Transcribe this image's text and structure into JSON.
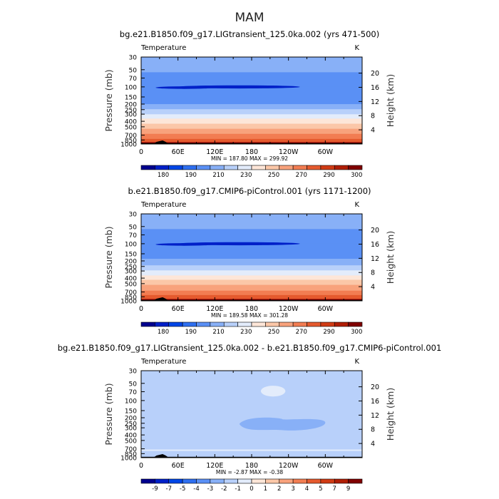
{
  "page_title": "MAM",
  "chart_data": [
    {
      "type": "heatmap",
      "title": "bg.e21.B1850.f09_g17.LIGtransient_125.0ka.002 (yrs 471-500)",
      "subtitle_left": "Temperature",
      "units": "K",
      "ylabel": "Pressure (mb)",
      "ylabel_right": "Height (km)",
      "x_ticks": [
        "0",
        "60E",
        "120E",
        "180",
        "120W",
        "60W"
      ],
      "y_ticks": [
        "30",
        "50",
        "70",
        "100",
        "150",
        "200",
        "250",
        "300",
        "400",
        "500",
        "700",
        "850",
        "1000"
      ],
      "y_right_ticks": [
        "20",
        "16",
        "12",
        "8",
        "4"
      ],
      "stats": "MIN = 187.80   MAX = 299.92",
      "colorbar_labels": [
        "180",
        "190",
        "210",
        "230",
        "250",
        "270",
        "290",
        "300"
      ],
      "colorbar_colors": [
        "#00008e",
        "#0020c8",
        "#0046e6",
        "#2e6ff0",
        "#5a90f5",
        "#88b0f7",
        "#b8d0fa",
        "#e3ecfb",
        "#fde6d8",
        "#fbc7a8",
        "#f8a27c",
        "#f27d52",
        "#e55a2e",
        "#d03b14",
        "#b01e05",
        "#800000"
      ],
      "mean_profile_K": [
        {
          "p": 30,
          "t": 217
        },
        {
          "p": 50,
          "t": 212
        },
        {
          "p": 70,
          "t": 206
        },
        {
          "p": 100,
          "t": 204
        },
        {
          "p": 150,
          "t": 206
        },
        {
          "p": 200,
          "t": 210
        },
        {
          "p": 250,
          "t": 221
        },
        {
          "p": 300,
          "t": 230
        },
        {
          "p": 400,
          "t": 245
        },
        {
          "p": 500,
          "t": 256
        },
        {
          "p": 700,
          "t": 272
        },
        {
          "p": 850,
          "t": 282
        },
        {
          "p": 1000,
          "t": 292
        }
      ]
    },
    {
      "type": "heatmap",
      "title": "b.e21.B1850.f09_g17.CMIP6-piControl.001 (yrs 1171-1200)",
      "subtitle_left": "Temperature",
      "units": "K",
      "ylabel": "Pressure (mb)",
      "ylabel_right": "Height (km)",
      "x_ticks": [
        "0",
        "60E",
        "120E",
        "180",
        "120W",
        "60W"
      ],
      "y_ticks": [
        "30",
        "50",
        "70",
        "100",
        "150",
        "200",
        "250",
        "300",
        "400",
        "500",
        "700",
        "850",
        "1000"
      ],
      "y_right_ticks": [
        "20",
        "16",
        "12",
        "8",
        "4"
      ],
      "stats": "MIN = 189.58   MAX = 301.28",
      "colorbar_labels": [
        "180",
        "190",
        "210",
        "230",
        "250",
        "270",
        "290",
        "300"
      ],
      "colorbar_colors": [
        "#00008e",
        "#0020c8",
        "#0046e6",
        "#2e6ff0",
        "#5a90f5",
        "#88b0f7",
        "#b8d0fa",
        "#e3ecfb",
        "#fde6d8",
        "#fbc7a8",
        "#f8a27c",
        "#f27d52",
        "#e55a2e",
        "#d03b14",
        "#b01e05",
        "#800000"
      ],
      "mean_profile_K": [
        {
          "p": 30,
          "t": 217
        },
        {
          "p": 50,
          "t": 212
        },
        {
          "p": 70,
          "t": 206
        },
        {
          "p": 100,
          "t": 205
        },
        {
          "p": 150,
          "t": 207
        },
        {
          "p": 200,
          "t": 211
        },
        {
          "p": 250,
          "t": 222
        },
        {
          "p": 300,
          "t": 231
        },
        {
          "p": 400,
          "t": 246
        },
        {
          "p": 500,
          "t": 257
        },
        {
          "p": 700,
          "t": 273
        },
        {
          "p": 850,
          "t": 283
        },
        {
          "p": 1000,
          "t": 293
        }
      ]
    },
    {
      "type": "heatmap",
      "title": "bg.e21.B1850.f09_g17.LIGtransient_125.0ka.002 - b.e21.B1850.f09_g17.CMIP6-piControl.001",
      "subtitle_left": "Temperature",
      "units": "K",
      "ylabel": "Pressure (mb)",
      "ylabel_right": "Height (km)",
      "x_ticks": [
        "0",
        "60E",
        "120E",
        "180",
        "120W",
        "60W"
      ],
      "y_ticks": [
        "30",
        "50",
        "70",
        "100",
        "150",
        "200",
        "250",
        "300",
        "400",
        "500",
        "700",
        "850",
        "1000"
      ],
      "y_right_ticks": [
        "20",
        "16",
        "12",
        "8",
        "4"
      ],
      "stats": "MIN = -2.87   MAX = -0.38",
      "colorbar_labels": [
        "-9",
        "-7",
        "-5",
        "-4",
        "-3",
        "-2",
        "-1",
        "0",
        "1",
        "2",
        "3",
        "4",
        "5",
        "7",
        "9"
      ],
      "colorbar_colors": [
        "#00008e",
        "#0020c8",
        "#0046e6",
        "#2e6ff0",
        "#5a90f5",
        "#88b0f7",
        "#b8d0fa",
        "#e3ecfb",
        "#fde6d8",
        "#fbc7a8",
        "#f8a27c",
        "#f27d52",
        "#e55a2e",
        "#d03b14",
        "#b01e05",
        "#800000"
      ],
      "background_level": "-2 to -1",
      "background_color": "#b8d0fa",
      "cooler_regions": [
        {
          "level": "-3 to -2",
          "lon": [
            160,
            300
          ],
          "p": [
            200,
            330
          ]
        }
      ],
      "warmer_regions": [
        {
          "level": "-1 to 0",
          "lon": [
            195,
            235
          ],
          "p": [
            55,
            85
          ]
        }
      ]
    }
  ]
}
